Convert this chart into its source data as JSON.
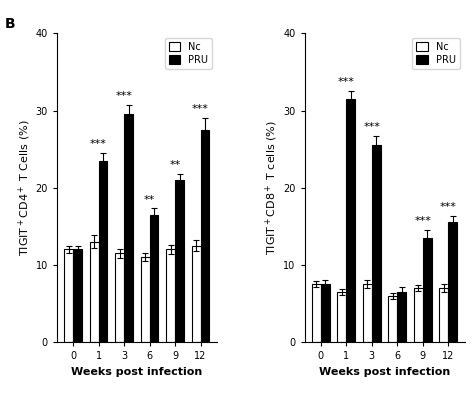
{
  "left_chart": {
    "title": "",
    "ylabel": "TIGIT$^+$CD4$^+$ T Cells (%)",
    "xlabel": "Weeks post infection",
    "weeks": [
      0,
      1,
      3,
      6,
      9,
      12
    ],
    "nc_means": [
      12.0,
      13.0,
      11.5,
      11.0,
      12.0,
      12.5
    ],
    "nc_errors": [
      0.5,
      0.8,
      0.6,
      0.5,
      0.6,
      0.7
    ],
    "pru_means": [
      12.0,
      23.5,
      29.5,
      16.5,
      21.0,
      27.5
    ],
    "pru_errors": [
      0.5,
      1.0,
      1.2,
      0.8,
      0.8,
      1.5
    ],
    "significance": [
      "",
      "***",
      "***",
      "**",
      "**",
      "***"
    ],
    "ylim": [
      0,
      40
    ],
    "yticks": [
      0,
      10,
      20,
      30,
      40
    ]
  },
  "right_chart": {
    "title": "",
    "ylabel": "TIGIT$^+$CD8$^+$ T cells (%)",
    "xlabel": "Weeks post infection",
    "weeks": [
      0,
      1,
      3,
      6,
      9,
      12
    ],
    "nc_means": [
      7.5,
      6.5,
      7.5,
      6.0,
      7.0,
      7.0
    ],
    "nc_errors": [
      0.4,
      0.4,
      0.5,
      0.4,
      0.4,
      0.5
    ],
    "pru_means": [
      7.5,
      31.5,
      25.5,
      6.5,
      13.5,
      15.5
    ],
    "pru_errors": [
      0.5,
      1.0,
      1.2,
      0.6,
      1.0,
      0.8
    ],
    "significance": [
      "",
      "***",
      "***",
      "",
      "***",
      "***"
    ],
    "ylim": [
      0,
      40
    ],
    "yticks": [
      0,
      10,
      20,
      30,
      40
    ]
  },
  "nc_color": "white",
  "pru_color": "black",
  "bar_edgecolor": "black",
  "bar_width": 0.35,
  "label_nc": "Nc",
  "label_pru": "PRU",
  "sig_fontsize": 8,
  "axis_fontsize": 8,
  "tick_fontsize": 7,
  "label_fontsize": 8
}
